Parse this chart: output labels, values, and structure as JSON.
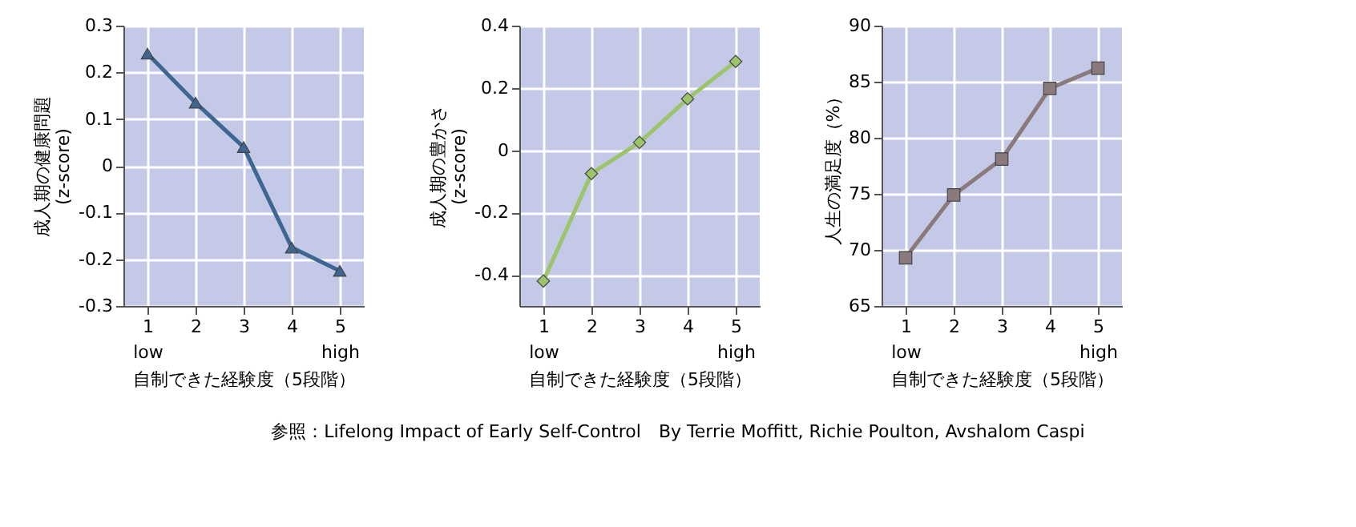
{
  "chart_data": [
    {
      "type": "line",
      "categories": [
        "1\nlow",
        "2",
        "3",
        "4",
        "5\nhigh"
      ],
      "xlabel": "自制できた経験度（5段階）",
      "ylabel": "成人期の健康問題\n(z-score)",
      "ylim": [
        -0.3,
        0.3
      ],
      "yticks": [
        -0.3,
        -0.2,
        -0.1,
        0,
        0.1,
        0.2,
        0.3
      ],
      "grid": true,
      "marker": "triangle",
      "series": [
        {
          "color": "#3d6690",
          "values": [
            0.24,
            0.135,
            0.04,
            -0.175,
            -0.225
          ]
        }
      ]
    },
    {
      "type": "line",
      "categories": [
        "1\nlow",
        "2",
        "3",
        "4",
        "5\nhigh"
      ],
      "xlabel": "自制できた経験度（5段階）",
      "ylabel": "成人期の豊かさ\n(z-score)",
      "ylim": [
        -0.5,
        0.4
      ],
      "yticks": [
        -0.4,
        -0.2,
        0,
        0.2,
        0.4
      ],
      "grid": true,
      "marker": "diamond",
      "series": [
        {
          "color": "#9cc46a",
          "values": [
            -0.42,
            -0.075,
            0.025,
            0.165,
            0.285
          ]
        }
      ],
      "annotations": [
        "参照：Lifelong Impact of Early Self-Control　By Terrie Moffitt, Richie Poulton, Avshalom Caspi"
      ]
    },
    {
      "type": "line",
      "categories": [
        "1\nlow",
        "2",
        "3",
        "4",
        "5\nhigh"
      ],
      "xlabel": "自制できた経験度（5段階）",
      "ylabel": "人生の満足度（%）",
      "ylim": [
        65,
        90
      ],
      "yticks": [
        65,
        70,
        75,
        80,
        85,
        90
      ],
      "grid": true,
      "marker": "square",
      "series": [
        {
          "color": "#8a7a7c",
          "values": [
            69.3,
            74.9,
            78.1,
            84.4,
            86.2
          ]
        }
      ]
    }
  ]
}
